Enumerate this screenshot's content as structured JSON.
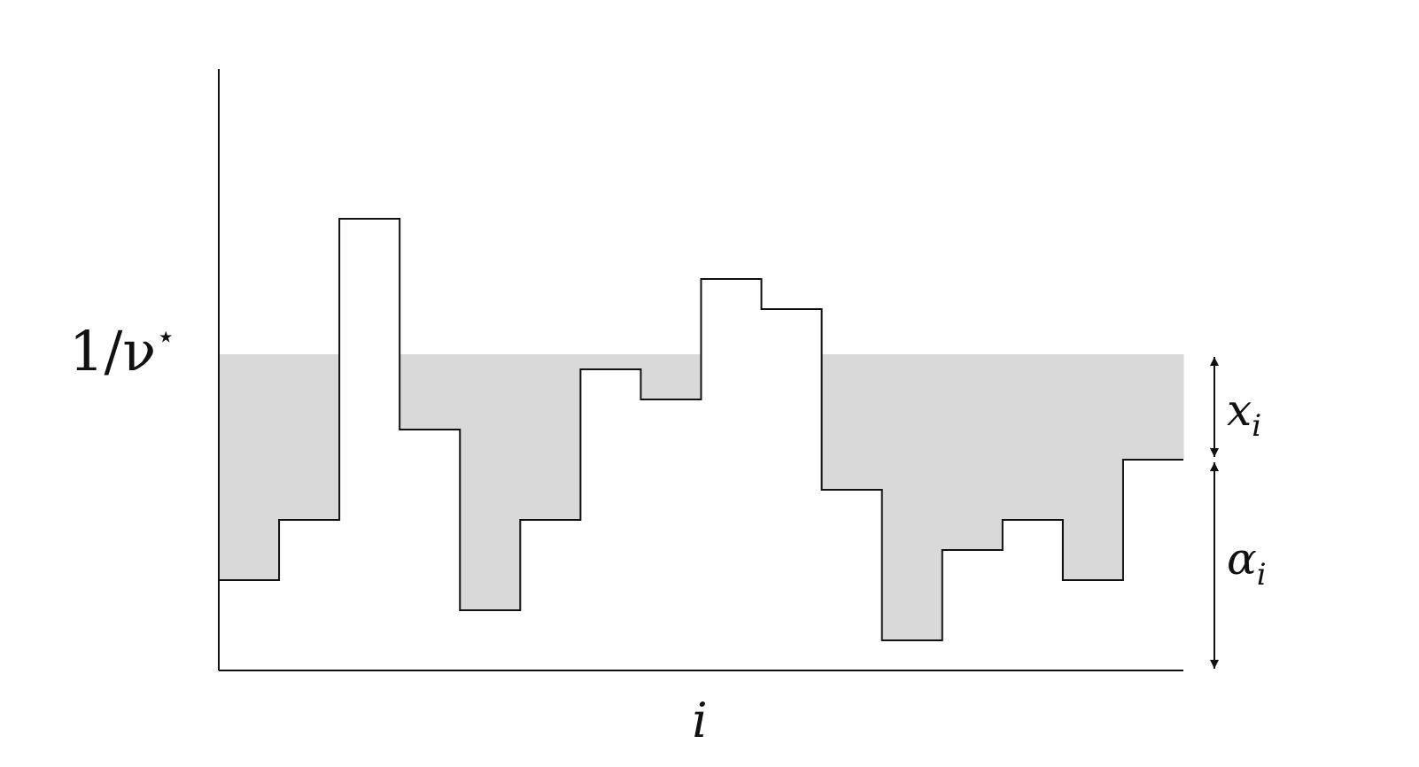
{
  "labels": {
    "level_base": "1/ν",
    "level_star": "⋆",
    "x_axis": "i",
    "fill_var": "x",
    "fill_sub": "i",
    "base_var": "α",
    "base_sub": "i"
  },
  "diagram": {
    "alpha_values": [
      3,
      5,
      15,
      8,
      2,
      5,
      10,
      9,
      13,
      12,
      6,
      1,
      4,
      5,
      3,
      7
    ],
    "level": 10.5,
    "annotated_index": 15,
    "y_max": 20,
    "colors": {
      "fill": "#d9d9d9",
      "stroke": "#111111",
      "background": "#ffffff"
    }
  }
}
